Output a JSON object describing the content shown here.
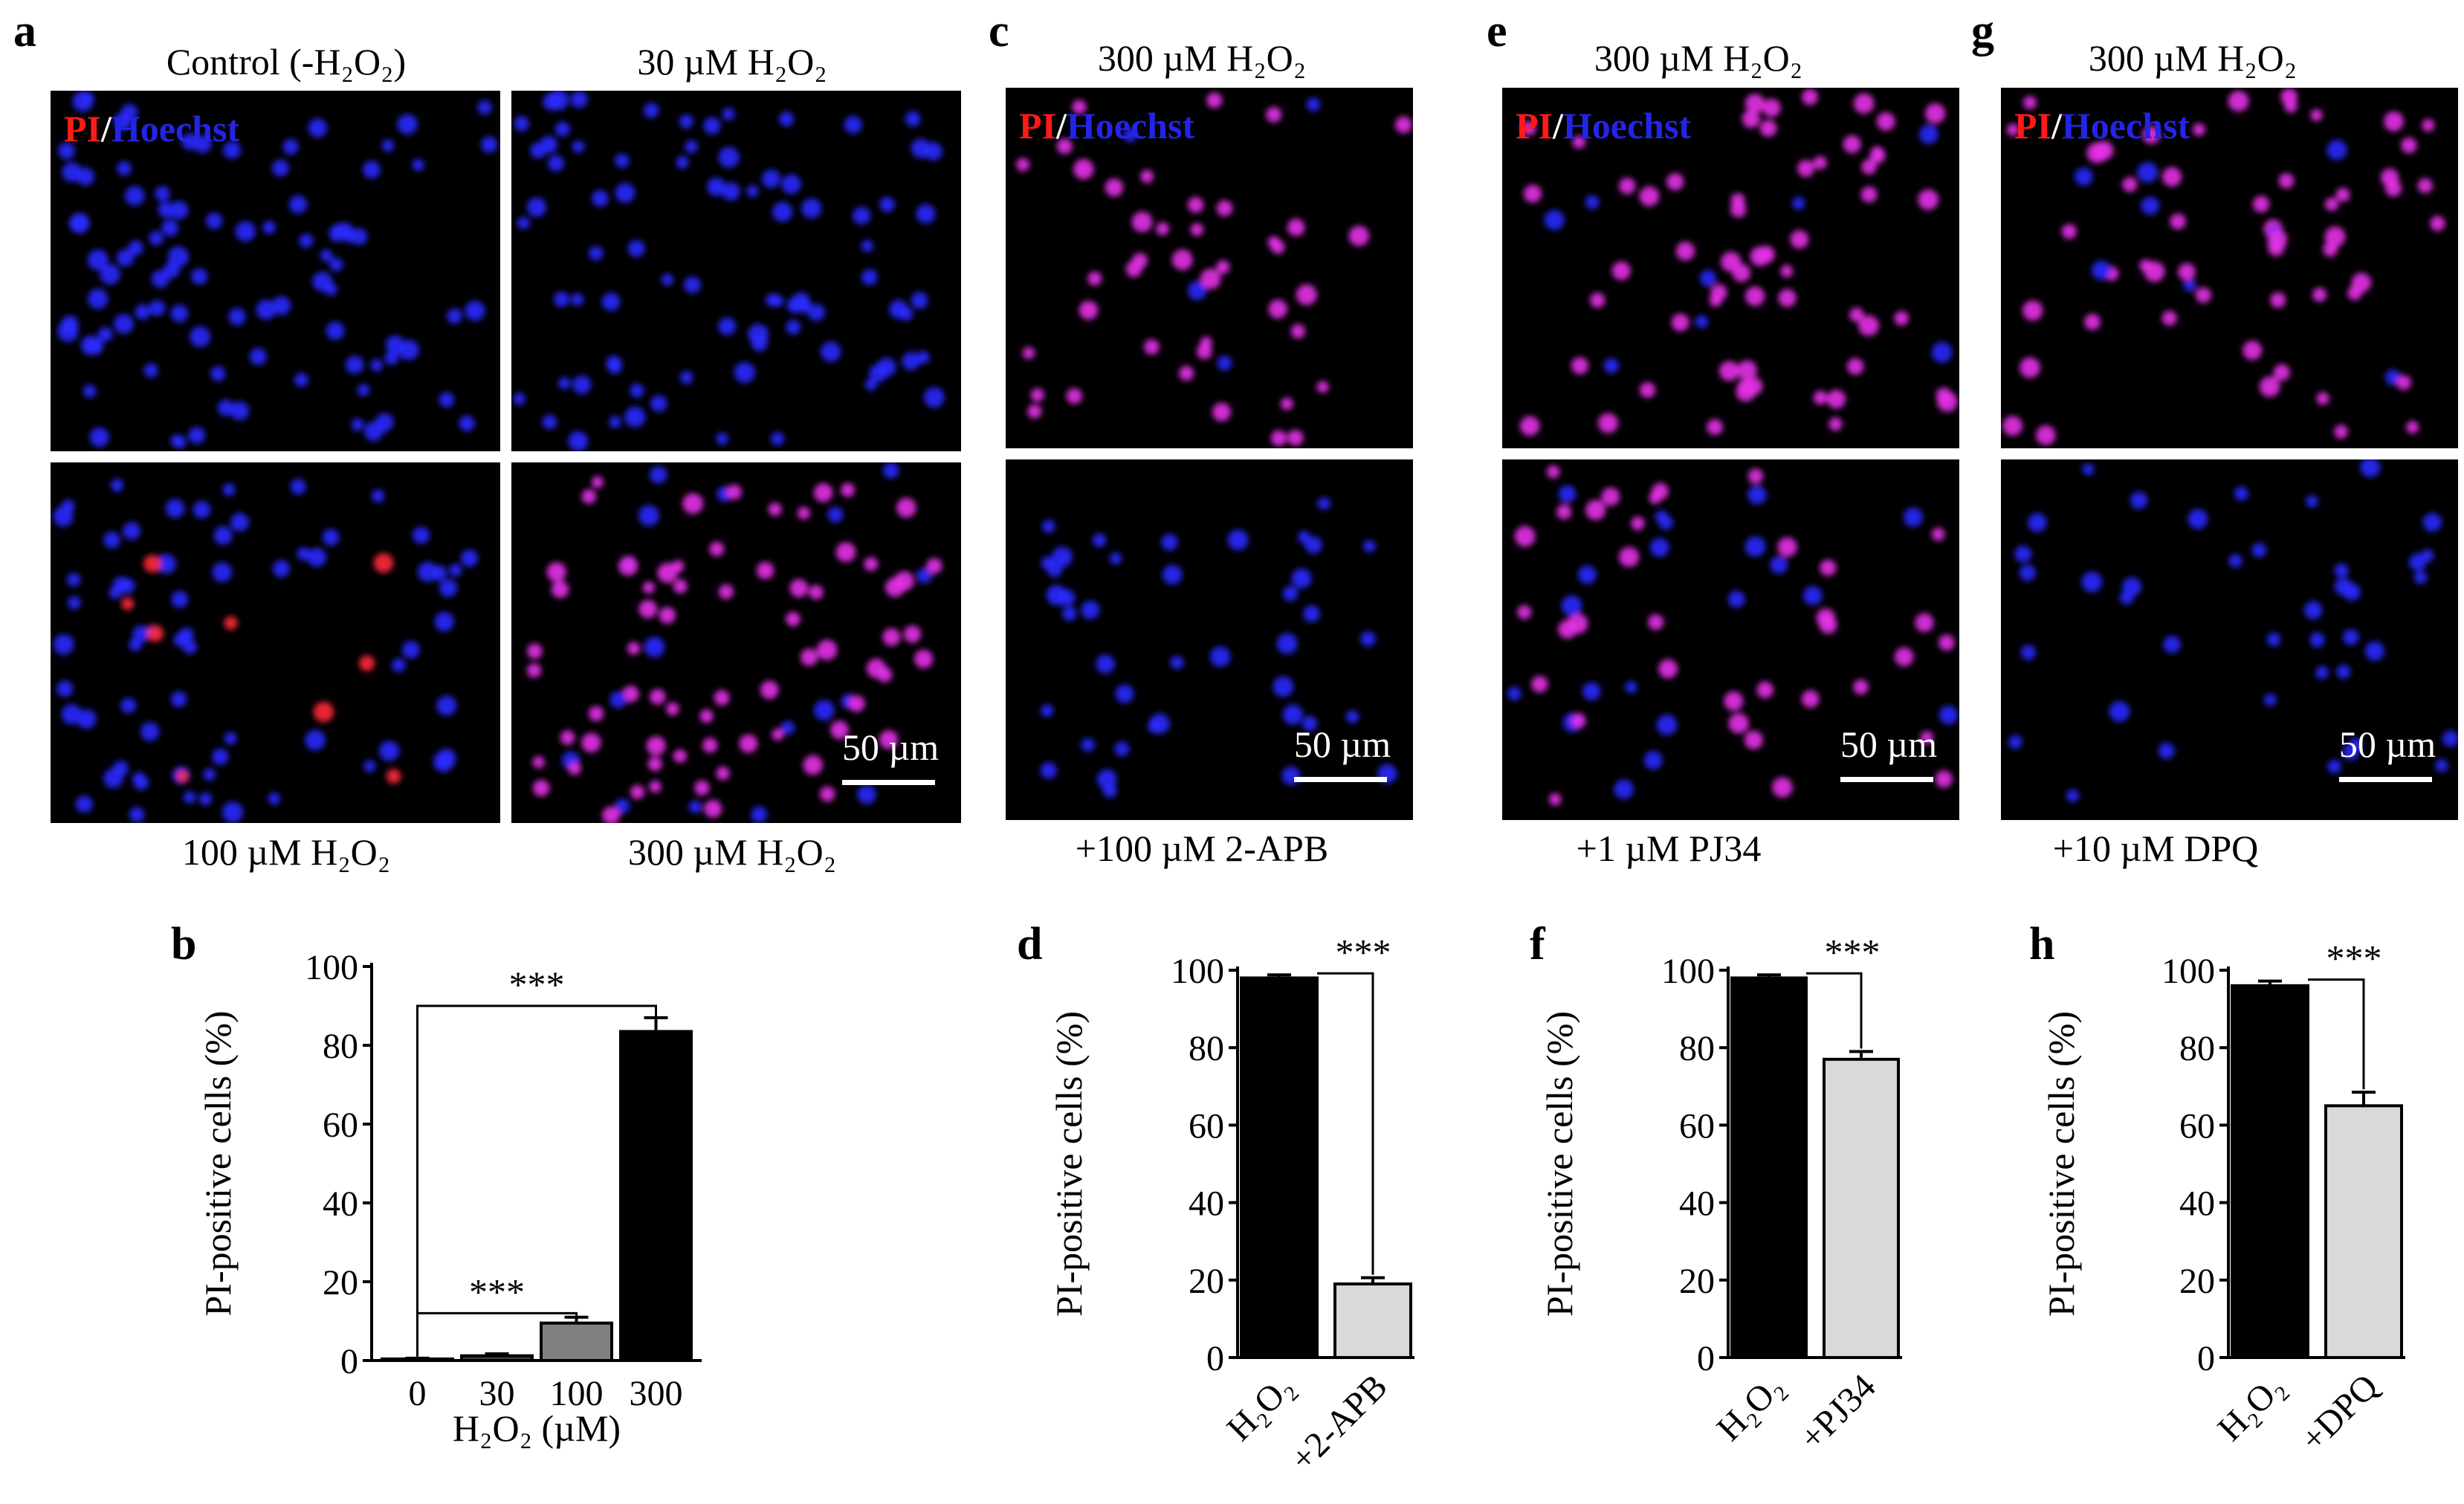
{
  "panel_letters": [
    "a",
    "b",
    "c",
    "d",
    "e",
    "f",
    "g",
    "h"
  ],
  "stain_label": {
    "pi": "PI",
    "sep": "/",
    "hoechst": "Hoechst"
  },
  "colors": {
    "pi": "#ff1a1a",
    "hoechst": "#2424e6",
    "cell_blue": "#2a2aff",
    "cell_red": "#ff2a3c",
    "cell_magenta": "#e632e8",
    "background": "#000000",
    "bar_black": "#000000",
    "bar_gray": "#808080",
    "bar_light": "#d9d9d9"
  },
  "scale_bar_label": "50 µm",
  "panel_a": {
    "top_left_label": "Control (-H₂O₂)",
    "top_right_label": "30 µM H₂O₂",
    "bottom_left_label": "100 µM H₂O₂",
    "bottom_right_label": "300 µM H₂O₂"
  },
  "panel_c": {
    "top_label": "300 µM H₂O₂",
    "bottom_label": "+100 µM 2-APB"
  },
  "panel_e": {
    "top_label": "300 µM H₂O₂",
    "bottom_label": "+1 µM PJ34"
  },
  "panel_g": {
    "top_label": "300 µM H₂O₂",
    "bottom_label": "+10 µM DPQ"
  },
  "chart_data": [
    {
      "panel": "b",
      "type": "bar",
      "categories": [
        "0",
        "30",
        "100",
        "300"
      ],
      "values": [
        0.4,
        1.2,
        9.5,
        83.5
      ],
      "errors": [
        0.2,
        0.5,
        1.5,
        3.5
      ],
      "bar_colors": [
        "#000000",
        "#404040",
        "#808080",
        "#000000"
      ],
      "ylabel": "PI-positive cells (%)",
      "xlabel": "H₂O₂ (µM)",
      "ylim": [
        0,
        100
      ],
      "yticks": [
        0,
        20,
        40,
        60,
        80,
        100
      ],
      "significance": [
        {
          "from": 0,
          "to": 3,
          "label": "***"
        },
        {
          "from": 0,
          "to": 2,
          "label": "***"
        }
      ]
    },
    {
      "panel": "d",
      "type": "bar",
      "categories": [
        "H₂O₂",
        "+2-APB"
      ],
      "values": [
        98,
        19
      ],
      "errors": [
        0.8,
        1.6
      ],
      "bar_colors": [
        "#000000",
        "#d9d9d9"
      ],
      "ylabel": "PI-positive cells (%)",
      "ylim": [
        0,
        100
      ],
      "yticks": [
        0,
        20,
        40,
        60,
        80,
        100
      ],
      "significance": [
        {
          "from": 0,
          "to": 1,
          "label": "***"
        }
      ]
    },
    {
      "panel": "f",
      "type": "bar",
      "categories": [
        "H₂O₂",
        "+PJ34"
      ],
      "values": [
        98,
        77
      ],
      "errors": [
        0.8,
        2.0
      ],
      "bar_colors": [
        "#000000",
        "#d9d9d9"
      ],
      "ylabel": "PI-positive cells (%)",
      "ylim": [
        0,
        100
      ],
      "yticks": [
        0,
        20,
        40,
        60,
        80,
        100
      ],
      "significance": [
        {
          "from": 0,
          "to": 1,
          "label": "***"
        }
      ]
    },
    {
      "panel": "h",
      "type": "bar",
      "categories": [
        "H₂O₂",
        "+DPQ"
      ],
      "values": [
        96,
        65
      ],
      "errors": [
        1.2,
        3.5
      ],
      "bar_colors": [
        "#000000",
        "#d9d9d9"
      ],
      "ylabel": "PI-positive cells (%)",
      "ylim": [
        0,
        100
      ],
      "yticks": [
        0,
        20,
        40,
        60,
        80,
        100
      ],
      "significance": [
        {
          "from": 0,
          "to": 1,
          "label": "***"
        }
      ]
    }
  ]
}
